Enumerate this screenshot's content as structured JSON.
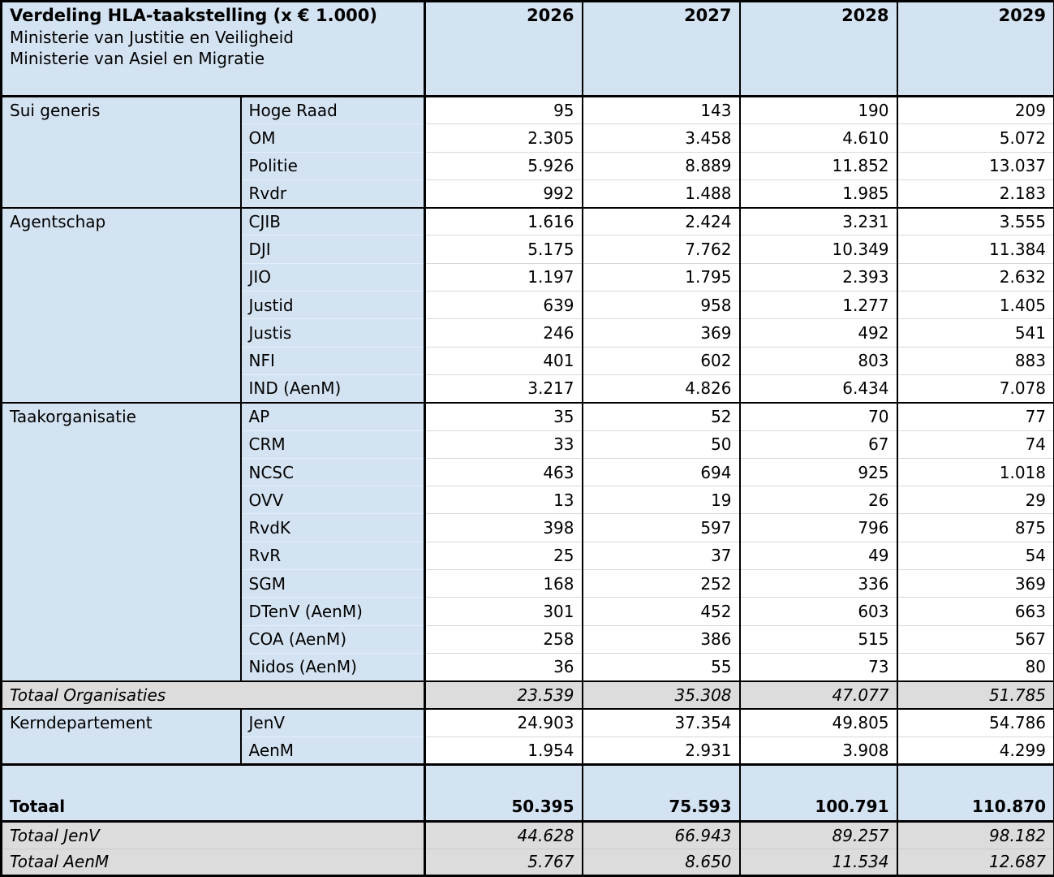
{
  "header": {
    "title": "Verdeling HLA-taakstelling (x € 1.000)",
    "subtitle1": "Ministerie van Justitie en Veiligheid",
    "subtitle2": "Ministerie van Asiel en Migratie",
    "years": [
      "2026",
      "2027",
      "2028",
      "2029"
    ]
  },
  "colors": {
    "label_blue": "#D4E3F2",
    "total_gray": "#DCDCDC",
    "border_black": "#000000"
  },
  "sections": [
    {
      "group": "Sui generis",
      "rows": [
        {
          "org": "Hoge Raad",
          "values": [
            "95",
            "143",
            "190",
            "209"
          ]
        },
        {
          "org": "OM",
          "values": [
            "2.305",
            "3.458",
            "4.610",
            "5.072"
          ]
        },
        {
          "org": "Politie",
          "values": [
            "5.926",
            "8.889",
            "11.852",
            "13.037"
          ]
        },
        {
          "org": "Rvdr",
          "values": [
            "992",
            "1.488",
            "1.985",
            "2.183"
          ]
        }
      ]
    },
    {
      "group": "Agentschap",
      "rows": [
        {
          "org": "CJIB",
          "values": [
            "1.616",
            "2.424",
            "3.231",
            "3.555"
          ]
        },
        {
          "org": "DJI",
          "values": [
            "5.175",
            "7.762",
            "10.349",
            "11.384"
          ]
        },
        {
          "org": "JIO",
          "values": [
            "1.197",
            "1.795",
            "2.393",
            "2.632"
          ]
        },
        {
          "org": "Justid",
          "values": [
            "639",
            "958",
            "1.277",
            "1.405"
          ]
        },
        {
          "org": "Justis",
          "values": [
            "246",
            "369",
            "492",
            "541"
          ]
        },
        {
          "org": "NFI",
          "values": [
            "401",
            "602",
            "803",
            "883"
          ]
        },
        {
          "org": "IND (AenM)",
          "values": [
            "3.217",
            "4.826",
            "6.434",
            "7.078"
          ]
        }
      ]
    },
    {
      "group": "Taakorganisatie",
      "rows": [
        {
          "org": "AP",
          "values": [
            "35",
            "52",
            "70",
            "77"
          ]
        },
        {
          "org": "CRM",
          "values": [
            "33",
            "50",
            "67",
            "74"
          ]
        },
        {
          "org": "NCSC",
          "values": [
            "463",
            "694",
            "925",
            "1.018"
          ]
        },
        {
          "org": "OVV",
          "values": [
            "13",
            "19",
            "26",
            "29"
          ]
        },
        {
          "org": "RvdK",
          "values": [
            "398",
            "597",
            "796",
            "875"
          ]
        },
        {
          "org": "RvR",
          "values": [
            "25",
            "37",
            "49",
            "54"
          ]
        },
        {
          "org": "SGM",
          "values": [
            "168",
            "252",
            "336",
            "369"
          ]
        },
        {
          "org": "DTenV (AenM)",
          "values": [
            "301",
            "452",
            "603",
            "663"
          ]
        },
        {
          "org": "COA (AenM)",
          "values": [
            "258",
            "386",
            "515",
            "567"
          ]
        },
        {
          "org": "Nidos (AenM)",
          "values": [
            "36",
            "55",
            "73",
            "80"
          ]
        }
      ]
    }
  ],
  "total_organisaties": {
    "label": "Totaal Organisaties",
    "values": [
      "23.539",
      "35.308",
      "47.077",
      "51.785"
    ]
  },
  "kerndepartement": {
    "group": "Kerndepartement",
    "rows": [
      {
        "org": "JenV",
        "values": [
          "24.903",
          "37.354",
          "49.805",
          "54.786"
        ]
      },
      {
        "org": "AenM",
        "values": [
          "1.954",
          "2.931",
          "3.908",
          "4.299"
        ]
      }
    ]
  },
  "grand_total": {
    "label": "Totaal",
    "values": [
      "50.395",
      "75.593",
      "100.791",
      "110.870"
    ]
  },
  "total_jenv": {
    "label": "Totaal JenV",
    "values": [
      "44.628",
      "66.943",
      "89.257",
      "98.182"
    ]
  },
  "total_aenm": {
    "label": "Totaal AenM",
    "values": [
      "5.767",
      "8.650",
      "11.534",
      "12.687"
    ]
  }
}
